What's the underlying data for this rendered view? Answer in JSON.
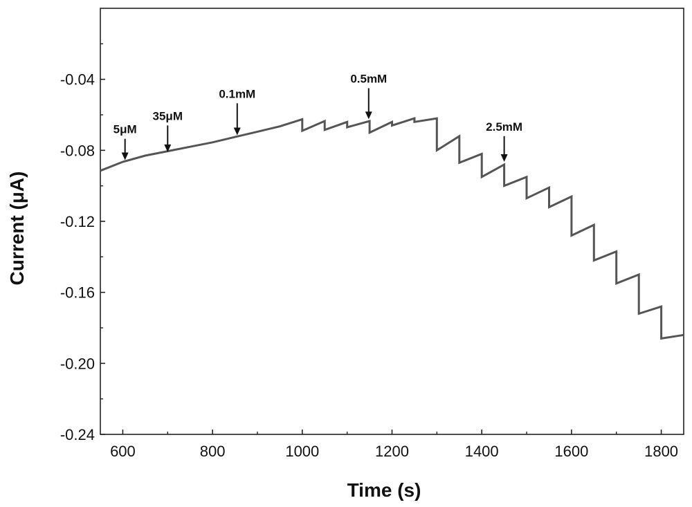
{
  "chart_data": {
    "type": "line",
    "title": "",
    "xlabel": "Time (s)",
    "ylabel": "Current (μA)",
    "xlim": [
      550,
      1850
    ],
    "ylim": [
      -0.24,
      0
    ],
    "xticks": [
      600,
      800,
      1000,
      1200,
      1400,
      1600,
      1800
    ],
    "xtick_labels": [
      "600",
      "800",
      "1000",
      "1200",
      "1400",
      "1600",
      "1800"
    ],
    "yticks": [
      -0.04,
      -0.08,
      -0.12,
      -0.16,
      -0.2,
      -0.24
    ],
    "ytick_labels": [
      "-0.04",
      "-0.08",
      "-0.12",
      "-0.16",
      "-0.20",
      "-0.24"
    ],
    "grid": false,
    "line_color": "#555555",
    "series": [
      {
        "x": [
          550,
          600,
          650,
          700,
          750,
          800,
          850,
          900,
          950,
          1000,
          1000,
          1050,
          1050,
          1100,
          1100,
          1150,
          1150,
          1200,
          1200,
          1250,
          1250,
          1300,
          1300,
          1350,
          1350,
          1400,
          1400,
          1450,
          1450,
          1500,
          1500,
          1550,
          1550,
          1600,
          1600,
          1650,
          1650,
          1700,
          1700,
          1750,
          1750,
          1800,
          1800,
          1850
        ],
        "y": [
          -0.0915,
          -0.0865,
          -0.083,
          -0.0805,
          -0.078,
          -0.0755,
          -0.0725,
          -0.0695,
          -0.0665,
          -0.0625,
          -0.069,
          -0.0635,
          -0.0685,
          -0.064,
          -0.067,
          -0.0635,
          -0.07,
          -0.064,
          -0.066,
          -0.062,
          -0.064,
          -0.062,
          -0.08,
          -0.072,
          -0.087,
          -0.082,
          -0.095,
          -0.088,
          -0.1,
          -0.095,
          -0.107,
          -0.101,
          -0.112,
          -0.106,
          -0.128,
          -0.122,
          -0.142,
          -0.137,
          -0.155,
          -0.15,
          -0.172,
          -0.168,
          -0.186,
          -0.184
        ]
      }
    ],
    "annotations": [
      {
        "text": "5μM",
        "x": 605,
        "y_tip": -0.0855,
        "y_tail": -0.0735
      },
      {
        "text": "35μM",
        "x": 700,
        "y_tip": -0.081,
        "y_tail": -0.066
      },
      {
        "text": "0.1mM",
        "x": 855,
        "y_tip": -0.0715,
        "y_tail": -0.0535
      },
      {
        "text": "0.5mM",
        "x": 1148,
        "y_tip": -0.0625,
        "y_tail": -0.045
      },
      {
        "text": "2.5mM",
        "x": 1450,
        "y_tip": -0.0865,
        "y_tail": -0.072
      }
    ]
  }
}
